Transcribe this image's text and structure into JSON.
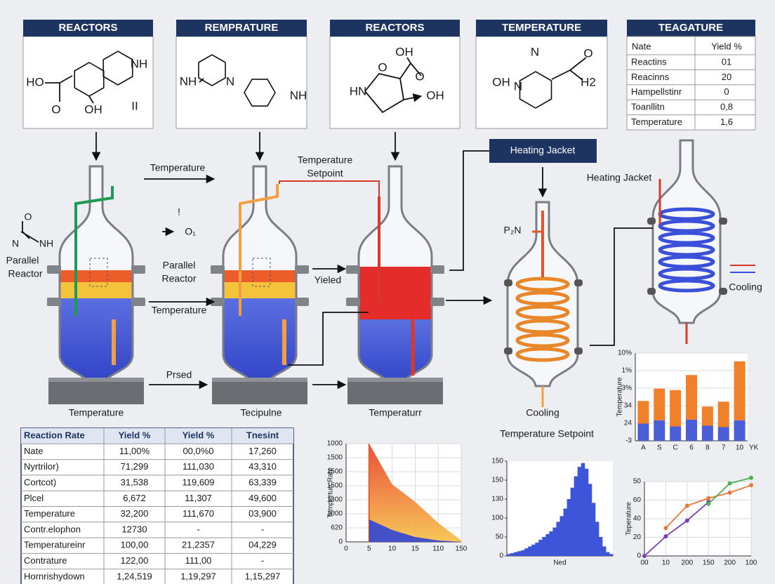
{
  "panels": [
    {
      "title": "REACTORS",
      "atoms": [
        "HO",
        "O",
        "OH",
        "NH",
        "II"
      ]
    },
    {
      "title": "REMPRATURE",
      "atoms": [
        "NH",
        "N",
        "NH"
      ]
    },
    {
      "title": "REACTORS",
      "atoms": [
        "OH",
        "O",
        "O",
        "HN",
        "OH"
      ]
    },
    {
      "title": "TEMPERATURE",
      "atoms": [
        "N",
        "O",
        "OH",
        "N",
        "H2"
      ]
    }
  ],
  "side_table": {
    "title": "TEAGATURE",
    "header": [
      "Nate",
      "Yield %"
    ],
    "rows": [
      [
        "Reactins",
        "01"
      ],
      [
        "Reacinns",
        "20"
      ],
      [
        "Hampellstinr",
        "0"
      ],
      [
        "Toanllitn",
        "0,8"
      ],
      [
        "Temperature",
        "1,6"
      ]
    ]
  },
  "labels": [
    "Temperature",
    "Temperature",
    "Setpoint",
    "Heating Jacket",
    "Heating Jacket",
    "!",
    "O₁",
    "O",
    "N",
    "NH",
    "Parallel",
    "Reactor",
    "Parallel",
    "Reactor",
    "Yieled",
    "Temperature",
    "Prsed",
    "P₂N",
    "Cooling",
    "Temperature",
    "Tecipulne",
    "Temperaturr",
    "Cooling",
    "Temperature Setpoint"
  ],
  "bottom_table": {
    "header": [
      "Reaction Rate",
      "Yield %",
      "Yield %",
      "Tnesint"
    ],
    "rows": [
      [
        "Nate",
        "11,00%",
        "00,0%0",
        "17,260"
      ],
      [
        "Nyrtrilor)",
        "71,299",
        "111,030",
        "43,310"
      ],
      [
        "Cortcot)",
        "31,538",
        "119,609",
        "63,339"
      ],
      [
        "Plcel",
        "6,672",
        "11,307",
        "49,600"
      ],
      [
        "Temperature",
        "32,200",
        "111,670",
        "03,900"
      ],
      [
        "Contr.elophon",
        "12730",
        "-",
        "-"
      ],
      [
        "Temperatureinr",
        "100,00",
        "21,2357",
        "04,229"
      ],
      [
        "Contrature",
        "122,00",
        "111,00",
        "-"
      ],
      [
        "Hornrishydown",
        "1,24,519",
        "1,19,297",
        "1,15,297"
      ]
    ]
  },
  "charts": {
    "bar": {
      "type": "bar",
      "ylabel": "Temperature",
      "categories": [
        "A",
        "S",
        "C",
        "6",
        "8",
        "7",
        "10"
      ],
      "x_unit": "YK",
      "ylim": [
        0,
        5
      ],
      "yticks": [
        {
          "value": 0,
          "label": "-3"
        },
        {
          "value": 1,
          "label": "24"
        },
        {
          "value": 2,
          "label": "34"
        },
        {
          "value": 3,
          "label": "3%"
        },
        {
          "value": 4,
          "label": "1%"
        },
        {
          "value": 5,
          "label": "10%"
        }
      ],
      "series": [
        {
          "color": "#4a5fd6",
          "values": [
            0.98,
            1.17,
            0.82,
            1.21,
            0.86,
            0.78,
            1.17
          ]
        },
        {
          "color": "#f0802a",
          "values": [
            1.29,
            1.8,
            2.07,
            2.54,
            1.09,
            1.45,
            3.36
          ]
        }
      ]
    },
    "area": {
      "type": "area",
      "ylabel": "Temperturr Rate",
      "x": [
        1,
        2,
        3,
        4,
        5
      ],
      "xlim": [
        0,
        5
      ],
      "xticks": [
        0,
        {
          "value": 1,
          "label": "5"
        },
        {
          "value": 2,
          "label": "10"
        },
        {
          "value": 3,
          "label": "15"
        },
        {
          "value": 4,
          "label": "110"
        },
        {
          "value": 5,
          "label": "150"
        }
      ],
      "ylim": [
        0,
        7
      ],
      "yticks": [
        0,
        {
          "value": 1,
          "label": "620"
        },
        {
          "value": 2,
          "label": "1000"
        },
        {
          "value": 3,
          "label": "1300"
        },
        {
          "value": 4,
          "label": "1500"
        },
        {
          "value": 5,
          "label": "1500"
        },
        {
          "value": 6,
          "label": "1500"
        },
        {
          "value": 7,
          "label": "1000"
        }
      ],
      "series": [
        {
          "color": "#ef5a24",
          "values": [
            7,
            4.1,
            2.85,
            1.35,
            0.1
          ]
        },
        {
          "color": "#3346d0",
          "values": [
            1.6,
            0.85,
            0.35,
            0.1,
            0
          ]
        }
      ]
    },
    "histogram": {
      "type": "bar",
      "xlabel": "Ned",
      "color": "#3d55d8",
      "ylim": [
        0,
        5
      ],
      "yticks": [
        0,
        {
          "value": 1,
          "label": "50"
        },
        {
          "value": 2,
          "label": "100"
        },
        {
          "value": 3,
          "label": "130"
        },
        {
          "value": 4,
          "label": "150"
        },
        {
          "value": 5,
          "label": "150"
        }
      ],
      "values": [
        0.1,
        0.15,
        0.2,
        0.25,
        0.3,
        0.4,
        0.5,
        0.6,
        0.7,
        0.85,
        1.0,
        1.15,
        1.3,
        1.5,
        1.8,
        2.1,
        2.5,
        3.0,
        3.6,
        4.2,
        4.7,
        4.9,
        4.6,
        3.8,
        2.8,
        1.8,
        1.0,
        0.5,
        0.2,
        0.1
      ]
    },
    "line": {
      "type": "line",
      "ylabel": "Teperature",
      "xlim": [
        0,
        5
      ],
      "xticks": [
        {
          "value": 0,
          "label": "00"
        },
        {
          "value": 1,
          "label": "10"
        },
        {
          "value": 2,
          "label": "200"
        },
        {
          "value": 3,
          "label": "150"
        },
        {
          "value": 4,
          "label": "200"
        },
        {
          "value": 5,
          "label": "100"
        }
      ],
      "ylim": [
        0,
        4
      ],
      "yticks": [
        0,
        {
          "value": 1,
          "label": "20"
        },
        {
          "value": 2,
          "label": "40"
        },
        {
          "value": 3,
          "label": "60"
        },
        {
          "value": 4,
          "label": "50"
        }
      ],
      "series": [
        {
          "color": "#7a3fb0",
          "x": [
            0,
            1,
            2,
            3
          ],
          "values": [
            0,
            1.05,
            1.9,
            2.9
          ]
        },
        {
          "color": "#e8783a",
          "x": [
            1,
            2,
            3,
            4,
            5
          ],
          "values": [
            1.5,
            2.7,
            3.1,
            3.4,
            3.8
          ]
        },
        {
          "color": "#4caf50",
          "x": [
            3,
            4,
            5
          ],
          "values": [
            2.8,
            3.9,
            4.2
          ]
        }
      ]
    }
  }
}
